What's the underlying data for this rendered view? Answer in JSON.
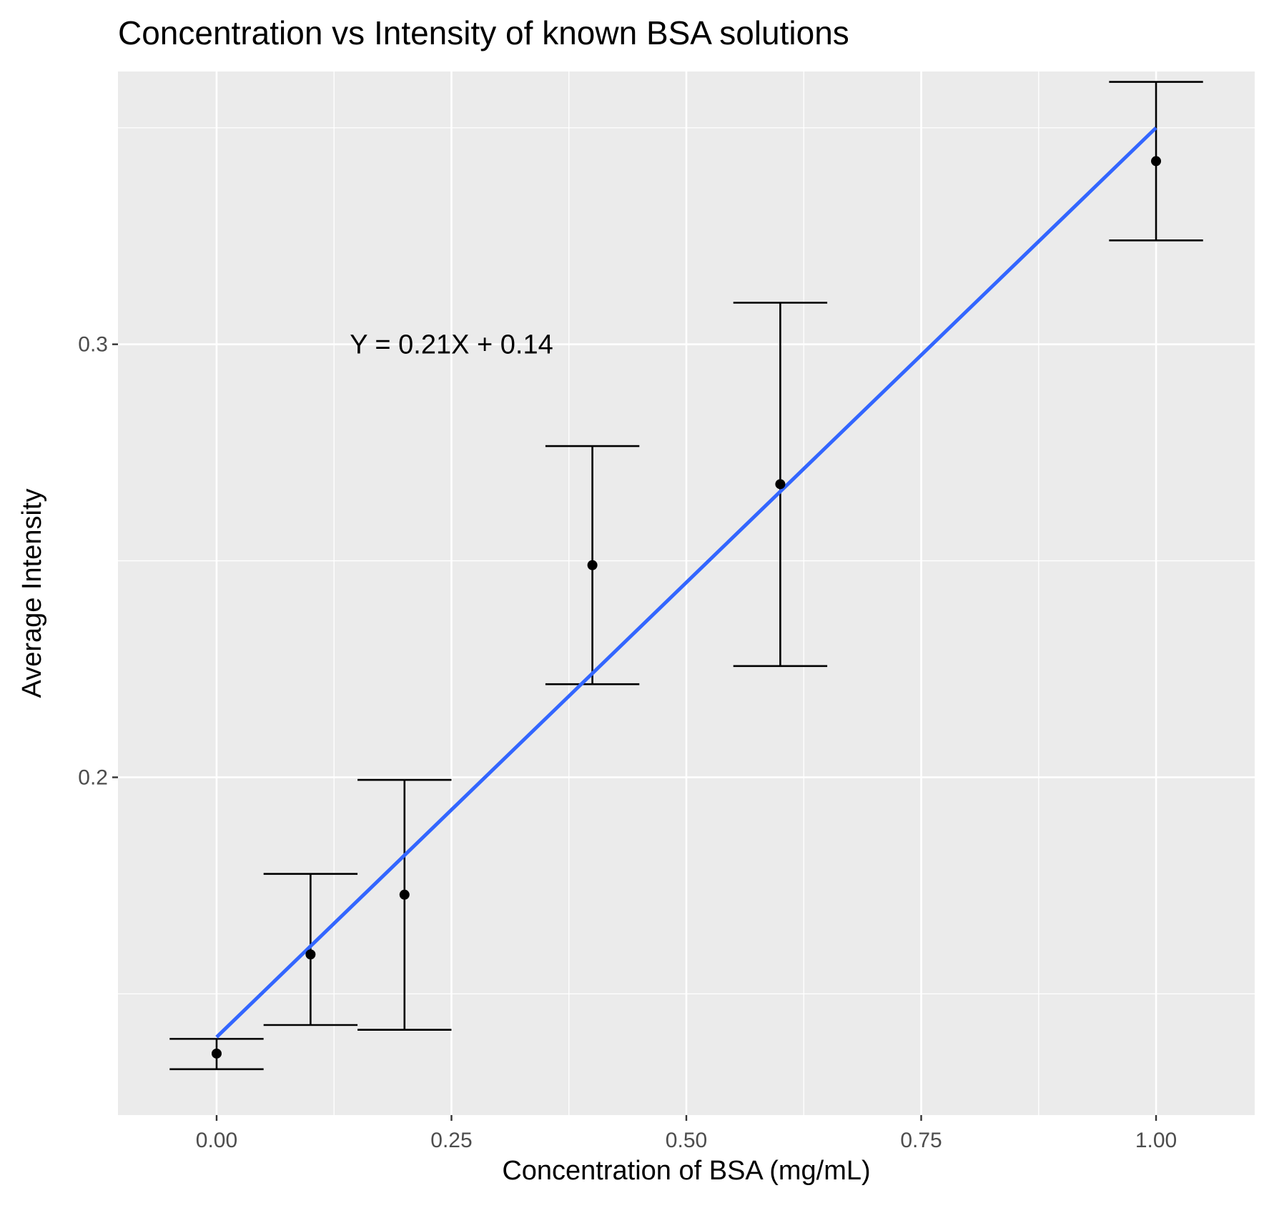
{
  "chart_data": {
    "type": "scatter",
    "title": "Concentration vs Intensity of known BSA solutions",
    "xlabel": "Concentration of BSA (mg/mL)",
    "ylabel": "Average Intensity",
    "xlim": [
      -0.105,
      1.105
    ],
    "ylim": [
      0.122,
      0.363
    ],
    "x_ticks": [
      0.0,
      0.25,
      0.5,
      0.75,
      1.0
    ],
    "x_tick_labels": [
      "0.00",
      "0.25",
      "0.50",
      "0.75",
      "1.00"
    ],
    "y_ticks": [
      0.2,
      0.3
    ],
    "y_tick_labels": [
      "0.2",
      "0.3"
    ],
    "grid": true,
    "points": [
      {
        "x": 0.0,
        "y": 0.1362,
        "ymin": 0.1326,
        "ymax": 0.1396
      },
      {
        "x": 0.1,
        "y": 0.1591,
        "ymin": 0.1428,
        "ymax": 0.1777
      },
      {
        "x": 0.2,
        "y": 0.1729,
        "ymin": 0.1417,
        "ymax": 0.1994
      },
      {
        "x": 0.4,
        "y": 0.249,
        "ymin": 0.2215,
        "ymax": 0.2765
      },
      {
        "x": 0.6,
        "y": 0.2677,
        "ymin": 0.2257,
        "ymax": 0.3096
      },
      {
        "x": 1.0,
        "y": 0.3423,
        "ymin": 0.324,
        "ymax": 0.3606
      }
    ],
    "fit_line": {
      "slope": 0.21,
      "intercept": 0.14,
      "x_range": [
        0.0,
        1.0
      ],
      "color": "#3366ff"
    },
    "annotation": {
      "text": "Y = 0.21X + 0.14",
      "x": 0.25,
      "y": 0.3
    },
    "colors": {
      "panel": "#ebebeb",
      "grid": "#ffffff",
      "points": "#000000",
      "errorbars": "#000000",
      "fit": "#3366ff"
    }
  }
}
